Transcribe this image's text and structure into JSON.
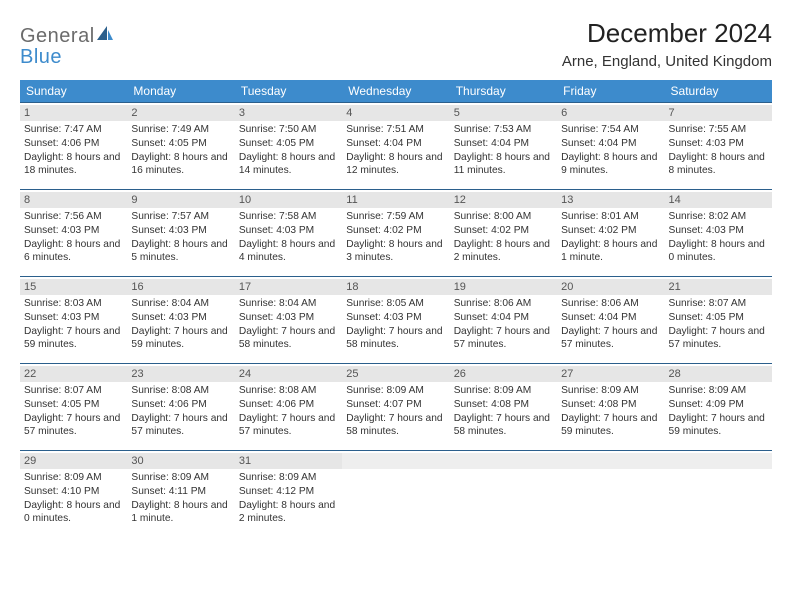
{
  "logo": {
    "general": "General",
    "blue": "Blue"
  },
  "title": "December 2024",
  "location": "Arne, England, United Kingdom",
  "colors": {
    "header_bg": "#3d8bcc",
    "header_text": "#ffffff",
    "daynum_bg": "#e6e6e6",
    "row_border": "#2b5f8c",
    "logo_gray": "#6b6b6b",
    "logo_blue": "#3d8bcc"
  },
  "weekdays": [
    "Sunday",
    "Monday",
    "Tuesday",
    "Wednesday",
    "Thursday",
    "Friday",
    "Saturday"
  ],
  "days": [
    {
      "n": "1",
      "sunrise": "7:47 AM",
      "sunset": "4:06 PM",
      "daylight": "8 hours and 18 minutes."
    },
    {
      "n": "2",
      "sunrise": "7:49 AM",
      "sunset": "4:05 PM",
      "daylight": "8 hours and 16 minutes."
    },
    {
      "n": "3",
      "sunrise": "7:50 AM",
      "sunset": "4:05 PM",
      "daylight": "8 hours and 14 minutes."
    },
    {
      "n": "4",
      "sunrise": "7:51 AM",
      "sunset": "4:04 PM",
      "daylight": "8 hours and 12 minutes."
    },
    {
      "n": "5",
      "sunrise": "7:53 AM",
      "sunset": "4:04 PM",
      "daylight": "8 hours and 11 minutes."
    },
    {
      "n": "6",
      "sunrise": "7:54 AM",
      "sunset": "4:04 PM",
      "daylight": "8 hours and 9 minutes."
    },
    {
      "n": "7",
      "sunrise": "7:55 AM",
      "sunset": "4:03 PM",
      "daylight": "8 hours and 8 minutes."
    },
    {
      "n": "8",
      "sunrise": "7:56 AM",
      "sunset": "4:03 PM",
      "daylight": "8 hours and 6 minutes."
    },
    {
      "n": "9",
      "sunrise": "7:57 AM",
      "sunset": "4:03 PM",
      "daylight": "8 hours and 5 minutes."
    },
    {
      "n": "10",
      "sunrise": "7:58 AM",
      "sunset": "4:03 PM",
      "daylight": "8 hours and 4 minutes."
    },
    {
      "n": "11",
      "sunrise": "7:59 AM",
      "sunset": "4:02 PM",
      "daylight": "8 hours and 3 minutes."
    },
    {
      "n": "12",
      "sunrise": "8:00 AM",
      "sunset": "4:02 PM",
      "daylight": "8 hours and 2 minutes."
    },
    {
      "n": "13",
      "sunrise": "8:01 AM",
      "sunset": "4:02 PM",
      "daylight": "8 hours and 1 minute."
    },
    {
      "n": "14",
      "sunrise": "8:02 AM",
      "sunset": "4:03 PM",
      "daylight": "8 hours and 0 minutes."
    },
    {
      "n": "15",
      "sunrise": "8:03 AM",
      "sunset": "4:03 PM",
      "daylight": "7 hours and 59 minutes."
    },
    {
      "n": "16",
      "sunrise": "8:04 AM",
      "sunset": "4:03 PM",
      "daylight": "7 hours and 59 minutes."
    },
    {
      "n": "17",
      "sunrise": "8:04 AM",
      "sunset": "4:03 PM",
      "daylight": "7 hours and 58 minutes."
    },
    {
      "n": "18",
      "sunrise": "8:05 AM",
      "sunset": "4:03 PM",
      "daylight": "7 hours and 58 minutes."
    },
    {
      "n": "19",
      "sunrise": "8:06 AM",
      "sunset": "4:04 PM",
      "daylight": "7 hours and 57 minutes."
    },
    {
      "n": "20",
      "sunrise": "8:06 AM",
      "sunset": "4:04 PM",
      "daylight": "7 hours and 57 minutes."
    },
    {
      "n": "21",
      "sunrise": "8:07 AM",
      "sunset": "4:05 PM",
      "daylight": "7 hours and 57 minutes."
    },
    {
      "n": "22",
      "sunrise": "8:07 AM",
      "sunset": "4:05 PM",
      "daylight": "7 hours and 57 minutes."
    },
    {
      "n": "23",
      "sunrise": "8:08 AM",
      "sunset": "4:06 PM",
      "daylight": "7 hours and 57 minutes."
    },
    {
      "n": "24",
      "sunrise": "8:08 AM",
      "sunset": "4:06 PM",
      "daylight": "7 hours and 57 minutes."
    },
    {
      "n": "25",
      "sunrise": "8:09 AM",
      "sunset": "4:07 PM",
      "daylight": "7 hours and 58 minutes."
    },
    {
      "n": "26",
      "sunrise": "8:09 AM",
      "sunset": "4:08 PM",
      "daylight": "7 hours and 58 minutes."
    },
    {
      "n": "27",
      "sunrise": "8:09 AM",
      "sunset": "4:08 PM",
      "daylight": "7 hours and 59 minutes."
    },
    {
      "n": "28",
      "sunrise": "8:09 AM",
      "sunset": "4:09 PM",
      "daylight": "7 hours and 59 minutes."
    },
    {
      "n": "29",
      "sunrise": "8:09 AM",
      "sunset": "4:10 PM",
      "daylight": "8 hours and 0 minutes."
    },
    {
      "n": "30",
      "sunrise": "8:09 AM",
      "sunset": "4:11 PM",
      "daylight": "8 hours and 1 minute."
    },
    {
      "n": "31",
      "sunrise": "8:09 AM",
      "sunset": "4:12 PM",
      "daylight": "8 hours and 2 minutes."
    }
  ],
  "labels": {
    "sunrise": "Sunrise:",
    "sunset": "Sunset:",
    "daylight": "Daylight:"
  },
  "layout": {
    "start_weekday": 0,
    "num_days": 31,
    "weeks": 5
  }
}
